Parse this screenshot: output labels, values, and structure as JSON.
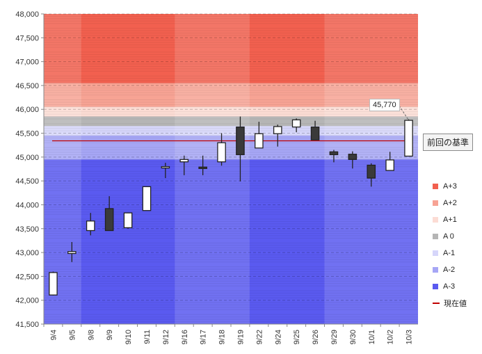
{
  "chart_data": {
    "type": "candlestick",
    "title": "",
    "xlabel": "",
    "ylabel": "",
    "ylim": [
      41500,
      48000
    ],
    "yticks": [
      41500,
      42000,
      42500,
      43000,
      43500,
      44000,
      44500,
      45000,
      45500,
      46000,
      46500,
      47000,
      47500,
      48000
    ],
    "ytick_labels": [
      "41,500",
      "42,000",
      "42,500",
      "43,000",
      "43,500",
      "44,000",
      "44,500",
      "45,000",
      "45,500",
      "46,000",
      "46,500",
      "47,000",
      "47,500",
      "48,000"
    ],
    "categories": [
      "9/4",
      "9/5",
      "9/8",
      "9/9",
      "9/10",
      "9/11",
      "9/12",
      "9/16",
      "9/17",
      "9/18",
      "9/19",
      "9/22",
      "9/24",
      "9/25",
      "9/26",
      "9/29",
      "9/30",
      "10/1",
      "10/2",
      "10/3"
    ],
    "candles": [
      {
        "open": 42110,
        "high": 42600,
        "low": 42100,
        "close": 42580
      },
      {
        "open": 42980,
        "high": 43220,
        "low": 42800,
        "close": 43020
      },
      {
        "open": 43460,
        "high": 43830,
        "low": 43360,
        "close": 43660
      },
      {
        "open": 43920,
        "high": 44180,
        "low": 43460,
        "close": 43460
      },
      {
        "open": 43520,
        "high": 43840,
        "low": 43500,
        "close": 43830
      },
      {
        "open": 43880,
        "high": 44380,
        "low": 43880,
        "close": 44380
      },
      {
        "open": 44780,
        "high": 44880,
        "low": 44560,
        "close": 44800
      },
      {
        "open": 44900,
        "high": 45030,
        "low": 44620,
        "close": 44950
      },
      {
        "open": 44790,
        "high": 45030,
        "low": 44620,
        "close": 44760
      },
      {
        "open": 44900,
        "high": 45500,
        "low": 44820,
        "close": 45300
      },
      {
        "open": 45630,
        "high": 45850,
        "low": 44490,
        "close": 45050
      },
      {
        "open": 45190,
        "high": 45740,
        "low": 45180,
        "close": 45490
      },
      {
        "open": 45490,
        "high": 45680,
        "low": 45220,
        "close": 45640
      },
      {
        "open": 45630,
        "high": 45810,
        "low": 45520,
        "close": 45780
      },
      {
        "open": 45630,
        "high": 45760,
        "low": 45360,
        "close": 45360
      },
      {
        "open": 45110,
        "high": 45150,
        "low": 44890,
        "close": 45050
      },
      {
        "open": 45060,
        "high": 45120,
        "low": 44760,
        "close": 44950
      },
      {
        "open": 44830,
        "high": 44870,
        "low": 44380,
        "close": 44560
      },
      {
        "open": 44720,
        "high": 45110,
        "low": 44720,
        "close": 44940
      },
      {
        "open": 45020,
        "high": 45790,
        "low": 45020,
        "close": 45770
      }
    ],
    "zones": [
      {
        "name": "A+3",
        "from": 46550,
        "to": 48000,
        "color": "#f2604f"
      },
      {
        "name": "A+2",
        "from": 46050,
        "to": 46550,
        "color": "#f7a394"
      },
      {
        "name": "A+1",
        "from": 45850,
        "to": 46050,
        "color": "#fcdcd4"
      },
      {
        "name": "A 0",
        "from": 45650,
        "to": 45850,
        "color": "#b5b5b5"
      },
      {
        "name": "A-1",
        "from": 45450,
        "to": 45650,
        "color": "#d6d6fa"
      },
      {
        "name": "A-2",
        "from": 44950,
        "to": 45450,
        "color": "#a6a6f5"
      },
      {
        "name": "A-3",
        "from": 41500,
        "to": 44950,
        "color": "#5a5af0"
      }
    ],
    "column_shading": [
      {
        "from": 0,
        "to": 2,
        "lighter": true
      },
      {
        "from": 2,
        "to": 7,
        "lighter": false
      },
      {
        "from": 7,
        "to": 11,
        "lighter": true
      },
      {
        "from": 11,
        "to": 15,
        "lighter": false
      },
      {
        "from": 15,
        "to": 20,
        "lighter": true
      }
    ],
    "reference_line": {
      "label": "前回の基準",
      "value": 45340,
      "color": "#c00000"
    },
    "last_value": {
      "label": "45,770",
      "value": 45770
    },
    "legend": {
      "placement": "right",
      "entries": [
        "A+3",
        "A+2",
        "A+1",
        "A 0",
        "A-1",
        "A-2",
        "A-3",
        "現在値"
      ],
      "line_entry_color": "#c00000"
    },
    "grid": true
  }
}
